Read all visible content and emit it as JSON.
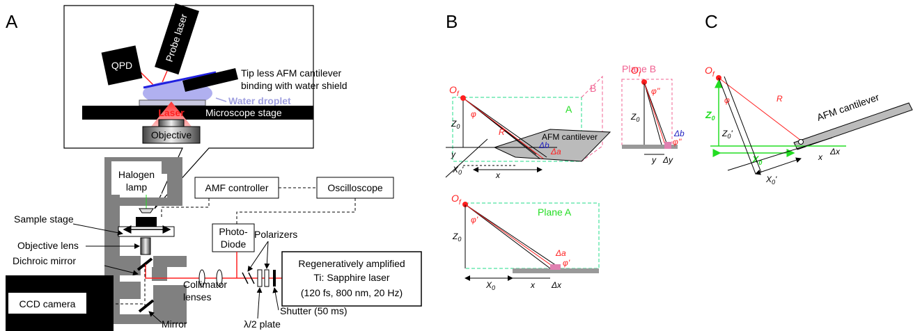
{
  "panel_a": {
    "letter": "A",
    "inset": {
      "qpd": "QPD",
      "probe_laser": "Probe laser",
      "cantilever": [
        "Tip less AFM cantilever",
        "binding with water shield"
      ],
      "water_droplet": "Water droplet",
      "laser": "Laser",
      "microscope_stage": "Microscope stage",
      "objective": "Objective"
    },
    "halogen_lamp": [
      "Halogen",
      "lamp"
    ],
    "controller": "AMF controller",
    "oscilloscope": "Oscilloscope",
    "sample_stage": "Sample stage",
    "objective_lens": "Objective lens",
    "dichroic_mirror": "Dichroic mirror",
    "photodiode": [
      "Photo-",
      "Diode"
    ],
    "polarizers": "Polarizers",
    "laser_source": [
      "Regeneratively amplified",
      "Ti: Sapphire laser",
      "(120 fs, 800 nm, 20 Hz)"
    ],
    "ccd_camera": "CCD camera",
    "collimator": [
      "Collimator",
      "lenses"
    ],
    "shutter": "Shutter (50 ms)",
    "mirror": "Mirror",
    "half_wave_plate": "λ/2 plate"
  },
  "panel_b": {
    "letter": "B",
    "origin": {
      "main": "O",
      "sub": "f"
    },
    "phi": "φ",
    "z0": {
      "main": "Z",
      "sub": "0"
    },
    "r": "R",
    "y": "y",
    "x0p": {
      "main": "X",
      "sub": "0",
      "mark": "'"
    },
    "x": "x",
    "cantilever": "AFM cantilever",
    "db": "Δb",
    "da": "Δa",
    "plane_a_tag": "A",
    "plane_b_tag": "B",
    "plane_b": {
      "title": "Plane B",
      "origin": {
        "main": "O",
        "sub": "f"
      },
      "phi": "φ''",
      "z0": {
        "main": "Z",
        "sub": "0"
      },
      "db": "Δb",
      "phi_tip": "φ''",
      "y": "y",
      "dy": "Δy"
    },
    "plane_a": {
      "title": "Plane A",
      "origin": {
        "main": "O",
        "sub": "f"
      },
      "phi": "φ'",
      "z0": {
        "main": "Z",
        "sub": "0"
      },
      "da": "Δa",
      "phi_tip": "φ'",
      "x0": {
        "main": "X",
        "sub": "0"
      },
      "x": "x",
      "dx": "Δx"
    }
  },
  "panel_c": {
    "letter": "C",
    "origin": {
      "main": "O",
      "sub": "f"
    },
    "phi": "φ",
    "r": "R",
    "cantilever": "AFM cantilever",
    "z0": {
      "main": "Z",
      "sub": "0"
    },
    "z0p": {
      "main": "Z",
      "sub": "0",
      "mark": "'"
    },
    "x0": {
      "main": "X",
      "sub": "0"
    },
    "x0p": {
      "main": "X",
      "sub": "0",
      "mark": "'"
    },
    "x": "x",
    "dx": "Δx"
  }
}
